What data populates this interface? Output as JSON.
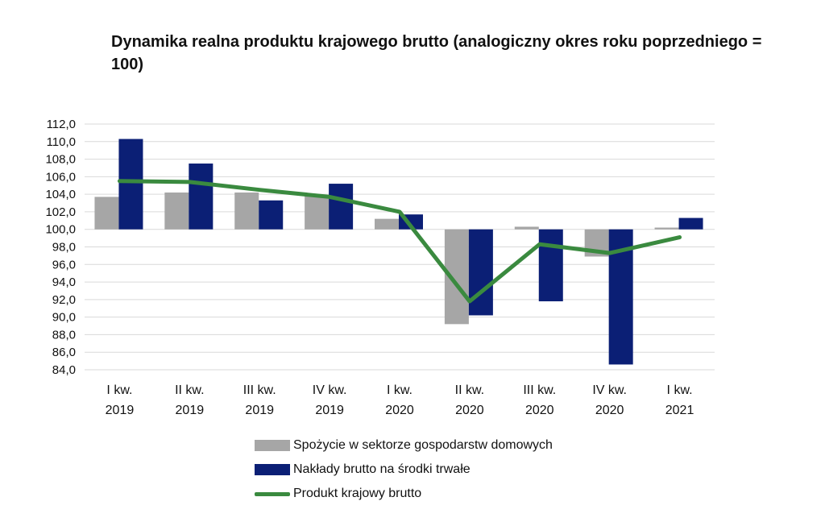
{
  "colors": {
    "consumption": "#a6a6a6",
    "investment": "#0b1f75",
    "gdp": "#3a8a3f",
    "grid": "#d9d9d9"
  },
  "chart_data": {
    "type": "bar",
    "title": "Dynamika realna produktu krajowego brutto (analogiczny okres roku poprzedniego = 100)",
    "categories": [
      [
        "I kw.",
        "2019"
      ],
      [
        "II kw.",
        "2019"
      ],
      [
        "III kw.",
        "2019"
      ],
      [
        "IV kw.",
        "2019"
      ],
      [
        "I kw.",
        "2020"
      ],
      [
        "II kw.",
        "2020"
      ],
      [
        "III kw.",
        "2020"
      ],
      [
        "IV kw.",
        "2020"
      ],
      [
        "I kw.",
        "2021"
      ]
    ],
    "ylim": [
      84,
      112
    ],
    "ytick_step": 2,
    "baseline": 100,
    "grid": true,
    "legend_position": "bottom",
    "series": [
      {
        "name": "Spożycie w sektorze gospodarstw domowych",
        "type": "bar",
        "values": [
          103.7,
          104.2,
          104.2,
          103.8,
          101.2,
          89.2,
          100.3,
          96.9,
          100.2
        ]
      },
      {
        "name": "Nakłady brutto na środki trwałe",
        "type": "bar",
        "values": [
          110.3,
          107.5,
          103.3,
          105.2,
          101.7,
          90.2,
          91.8,
          84.6,
          101.3
        ]
      },
      {
        "name": "Produkt krajowy brutto",
        "type": "line",
        "values": [
          105.5,
          105.4,
          104.5,
          103.7,
          102.0,
          91.8,
          98.3,
          97.3,
          99.1
        ]
      }
    ]
  }
}
